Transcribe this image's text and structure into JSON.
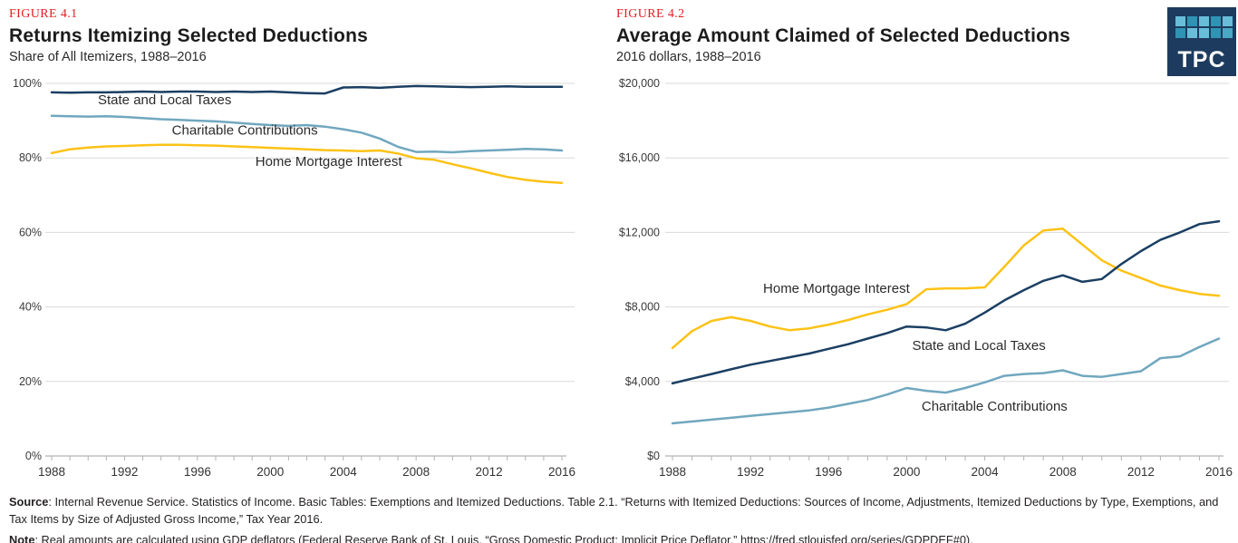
{
  "figure1": {
    "label": "FIGURE 4.1",
    "title": "Returns Itemizing Selected Deductions",
    "subtitle": "Share of All Itemizers, 1988–2016"
  },
  "figure2": {
    "label": "FIGURE 4.2",
    "title": "Average Amount Claimed of Selected Deductions",
    "subtitle": "2016 dollars, 1988–2016"
  },
  "logo": {
    "text": "TPC",
    "background": "#1d3b5e",
    "square_colors": [
      "#68bed8",
      "#2f93b4",
      "#68bed8",
      "#2f93b4",
      "#68bed8",
      "#2f93b4",
      "#68bed8",
      "#68bed8",
      "#2f93b4",
      "#49a8c4"
    ]
  },
  "colors": {
    "navy": "#1b3f63",
    "light_blue": "#70a7bf",
    "yellow": "#fcc216",
    "gridline": "#dadada",
    "axis": "#b3b3b3",
    "figure_label_red": "#e31c23"
  },
  "footer": {
    "source_label": "Source",
    "source_text": ": Internal Revenue Service. Statistics of Income. Basic Tables: Exemptions and Itemized Deductions. Table 2.1. “Returns with Itemized Deductions: Sources of Income, Adjustments, Itemized Deductions by Type, Exemptions, and Tax Items by Size of Adjusted Gross Income,” Tax Year 2016.",
    "note_label": "Note",
    "note_text": ": Real amounts are calculated using GDP deflators (Federal Reserve Bank of St. Louis, “Gross Domestic Product: Implicit Price Deflator,” https://fred.stlouisfed.org/series/GDPDEF#0)."
  },
  "chart_data": [
    {
      "type": "line",
      "title": "Returns Itemizing Selected Deductions",
      "ylabel": "Share of All Itemizers",
      "x": [
        1988,
        1989,
        1990,
        1991,
        1992,
        1993,
        1994,
        1995,
        1996,
        1997,
        1998,
        1999,
        2000,
        2001,
        2002,
        2003,
        2004,
        2005,
        2006,
        2007,
        2008,
        2009,
        2010,
        2011,
        2012,
        2013,
        2014,
        2015,
        2016
      ],
      "x_tick_labels": [
        1988,
        1992,
        1996,
        2000,
        2004,
        2008,
        2012,
        2016
      ],
      "ylim": [
        0,
        100
      ],
      "y_ticks": [
        0,
        20,
        40,
        60,
        80,
        100
      ],
      "y_tick_labels": [
        "0%",
        "20%",
        "40%",
        "60%",
        "80%",
        "100%"
      ],
      "grid": "horizontal",
      "legend_position": "inline-annotations",
      "series": [
        {
          "name": "State and Local Taxes",
          "color": "#1b3f63",
          "label_at": {
            "x": 1994.2,
            "y": 94.4
          },
          "values": [
            97.6,
            97.5,
            97.6,
            97.6,
            97.7,
            97.8,
            97.7,
            97.8,
            97.8,
            97.7,
            97.8,
            97.7,
            97.8,
            97.6,
            97.4,
            97.3,
            98.9,
            99.0,
            98.8,
            99.1,
            99.3,
            99.2,
            99.1,
            99.0,
            99.1,
            99.2,
            99.1,
            99.1,
            99.1
          ]
        },
        {
          "name": "Charitable Contributions",
          "color": "#70a7bf",
          "label_at": {
            "x": 1998.6,
            "y": 86.2
          },
          "values": [
            91.3,
            91.2,
            91.1,
            91.2,
            91.0,
            90.7,
            90.4,
            90.2,
            90.0,
            89.8,
            89.5,
            89.1,
            88.8,
            88.6,
            88.8,
            88.4,
            87.7,
            86.8,
            85.2,
            83.0,
            81.6,
            81.7,
            81.5,
            81.8,
            82.0,
            82.2,
            82.4,
            82.3,
            82.0
          ]
        },
        {
          "name": "Home Mortgage Interest",
          "color": "#fcc216",
          "label_at": {
            "x": 2003.2,
            "y": 77.8
          },
          "values": [
            81.3,
            82.3,
            82.8,
            83.1,
            83.2,
            83.4,
            83.5,
            83.5,
            83.4,
            83.3,
            83.1,
            82.9,
            82.7,
            82.5,
            82.3,
            82.1,
            82.0,
            81.8,
            82.0,
            81.2,
            79.9,
            79.5,
            78.3,
            77.2,
            76.0,
            74.9,
            74.1,
            73.6,
            73.3
          ]
        }
      ]
    },
    {
      "type": "line",
      "title": "Average Amount Claimed of Selected Deductions",
      "ylabel": "2016 dollars",
      "x": [
        1988,
        1989,
        1990,
        1991,
        1992,
        1993,
        1994,
        1995,
        1996,
        1997,
        1998,
        1999,
        2000,
        2001,
        2002,
        2003,
        2004,
        2005,
        2006,
        2007,
        2008,
        2009,
        2010,
        2011,
        2012,
        2013,
        2014,
        2015,
        2016
      ],
      "x_tick_labels": [
        1988,
        1992,
        1996,
        2000,
        2004,
        2008,
        2012,
        2016
      ],
      "ylim": [
        0,
        20000
      ],
      "y_ticks": [
        0,
        4000,
        8000,
        12000,
        16000,
        20000
      ],
      "y_tick_labels": [
        "$0",
        "$4,000",
        "$8,000",
        "$12,000",
        "$16,000",
        "$20,000"
      ],
      "grid": "horizontal",
      "legend_position": "inline-annotations",
      "series": [
        {
          "name": "Home Mortgage Interest",
          "color": "#fcc216",
          "label_at": {
            "x": 1996.4,
            "y": 8760
          },
          "values": [
            5800,
            6700,
            7250,
            7450,
            7250,
            6950,
            6750,
            6850,
            7050,
            7300,
            7600,
            7850,
            8150,
            8950,
            9000,
            9000,
            9050,
            10150,
            11300,
            12100,
            12200,
            11350,
            10500,
            9950,
            9550,
            9150,
            8900,
            8700,
            8600
          ]
        },
        {
          "name": "State and Local Taxes",
          "color": "#1b3f63",
          "label_at": {
            "x": 2003.7,
            "y": 5690
          },
          "values": [
            3900,
            4150,
            4400,
            4650,
            4900,
            5100,
            5300,
            5500,
            5750,
            6000,
            6300,
            6600,
            6950,
            6900,
            6750,
            7100,
            7700,
            8350,
            8900,
            9400,
            9700,
            9350,
            9500,
            10300,
            11000,
            11600,
            12000,
            12450,
            12600
          ]
        },
        {
          "name": "Charitable Contributions",
          "color": "#70a7bf",
          "label_at": {
            "x": 2004.5,
            "y": 2430
          },
          "values": [
            1750,
            1850,
            1950,
            2050,
            2150,
            2250,
            2350,
            2450,
            2600,
            2800,
            3000,
            3300,
            3650,
            3500,
            3400,
            3650,
            3950,
            4300,
            4400,
            4450,
            4600,
            4300,
            4250,
            4400,
            4550,
            5250,
            5350,
            5850,
            6300
          ]
        }
      ]
    }
  ]
}
